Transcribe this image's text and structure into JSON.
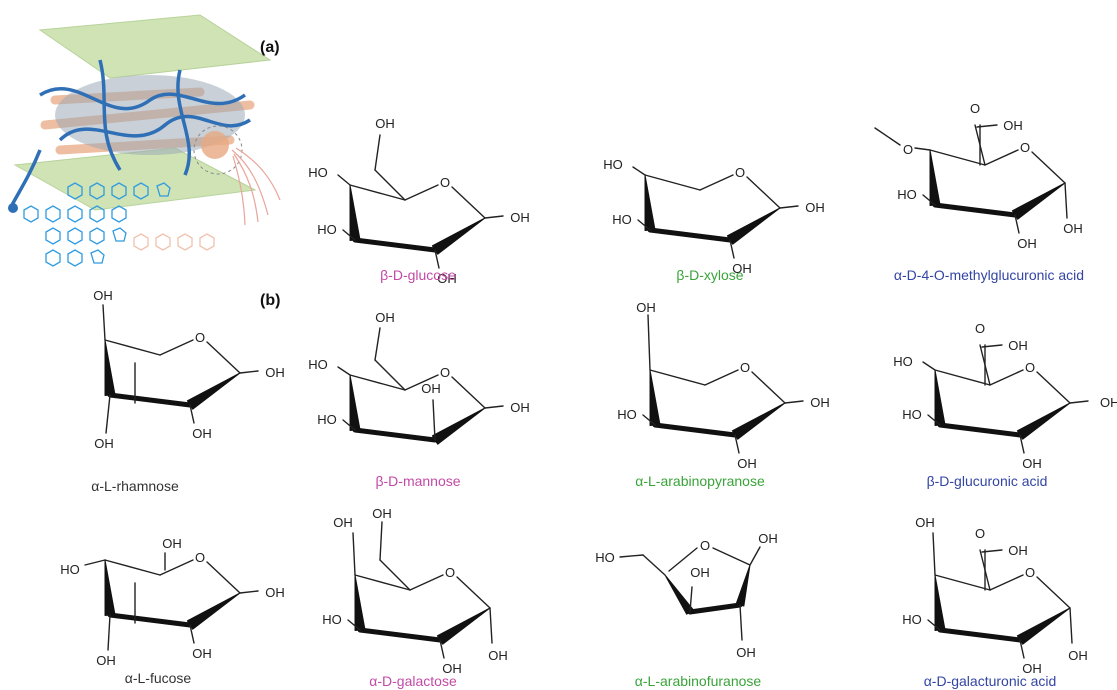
{
  "panel_labels": {
    "a": "(a)",
    "b": "(b)"
  },
  "colors": {
    "magenta": "#c24aa6",
    "green": "#3aa33a",
    "blue": "#3345a3",
    "black": "#333333"
  },
  "molecules": [
    {
      "id": "b-d-glucose",
      "caption": "β-D-glucose",
      "color": "#c24aa6"
    },
    {
      "id": "b-d-xylose",
      "caption": "β-D-xylose",
      "color": "#3aa33a"
    },
    {
      "id": "a-d-4-o-methylglucuronic-acid",
      "caption": "α-D-4-O-methylglucuronic acid",
      "color": "#3345a3"
    },
    {
      "id": "a-l-rhamnose",
      "caption": "α-L-rhamnose",
      "color": "#333333"
    },
    {
      "id": "b-d-mannose",
      "caption": "β-D-mannose",
      "color": "#c24aa6"
    },
    {
      "id": "a-l-arabinopyranose",
      "caption": "α-L-arabinopyranose",
      "color": "#3aa33a"
    },
    {
      "id": "b-d-glucuronic-acid",
      "caption": "β-D-glucuronic acid",
      "color": "#3345a3"
    },
    {
      "id": "a-l-fucose",
      "caption": "α-L-fucose",
      "color": "#333333"
    },
    {
      "id": "a-d-galactose",
      "caption": "α-D-galactose",
      "color": "#c24aa6"
    },
    {
      "id": "a-l-arabinofuranose",
      "caption": "α-L-arabinofuranose",
      "color": "#3aa33a"
    },
    {
      "id": "a-d-galacturonic-acid",
      "caption": "α-D-galacturonic acid",
      "color": "#3345a3"
    }
  ],
  "atoms": {
    "oh": "OH",
    "ho": "HO",
    "o": "O"
  }
}
